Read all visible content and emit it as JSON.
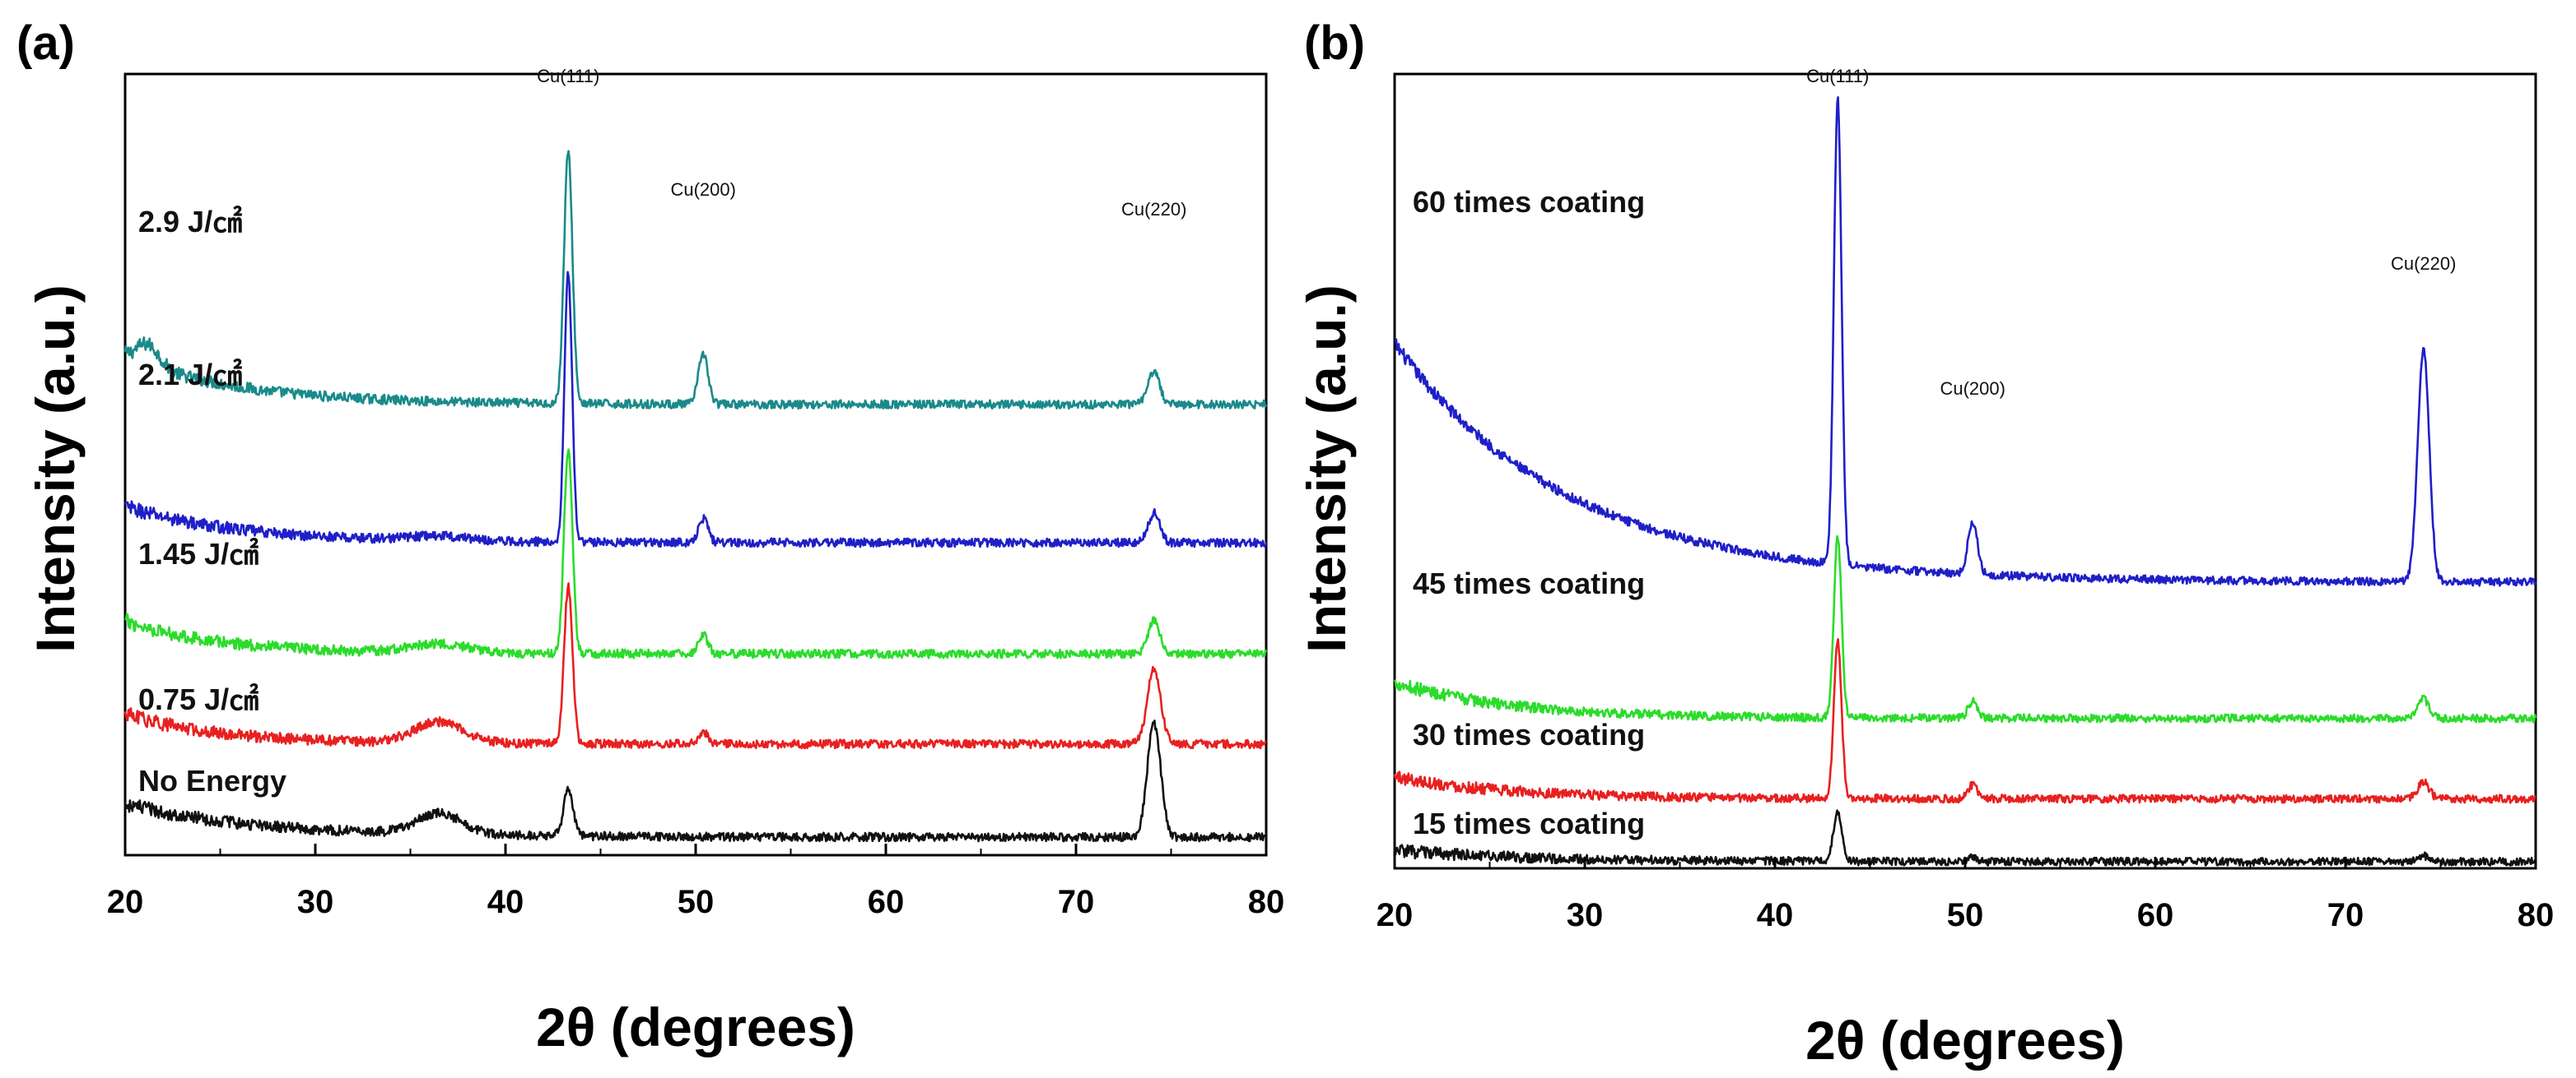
{
  "chart_data": [
    {
      "panel": "(a)",
      "type": "line",
      "xlabel": "2θ (degrees)",
      "ylabel": "Intensity (a.u.)",
      "xlim": [
        20,
        80
      ],
      "xticks": [
        "20",
        "30",
        "40",
        "50",
        "60",
        "70",
        "80"
      ],
      "yticks_shown": false,
      "peak_labels": [
        {
          "text": "Cu(111)",
          "x": 43.3
        },
        {
          "text": "Cu(200)",
          "x": 50.4
        },
        {
          "text": "Cu(220)",
          "x": 74.1
        }
      ],
      "series": [
        {
          "name": "2.9 J/㎠",
          "color": "#1a8a8a",
          "baseline": 7.5,
          "tail": 0.8,
          "decay": 6,
          "humps": [
            [
              21.2,
              0.35,
              0.6
            ]
          ],
          "peaks": [
            [
              43.3,
              4.2,
              0.22
            ],
            [
              50.4,
              0.85,
              0.25
            ],
            [
              74.1,
              0.55,
              0.3
            ]
          ]
        },
        {
          "name": "2.1 J/㎠",
          "color": "#1f1fc8",
          "baseline": 5.2,
          "tail": 0.6,
          "decay": 6,
          "humps": [
            [
              36.5,
              0.08,
              1.5
            ]
          ],
          "peaks": [
            [
              43.3,
              4.5,
              0.2
            ],
            [
              50.4,
              0.4,
              0.25
            ],
            [
              74.1,
              0.5,
              0.3
            ]
          ]
        },
        {
          "name": "1.45 J/㎠",
          "color": "#2bdc2b",
          "baseline": 3.35,
          "tail": 0.55,
          "decay": 5,
          "humps": [
            [
              36.5,
              0.15,
              1.5
            ]
          ],
          "peaks": [
            [
              43.3,
              3.4,
              0.22
            ],
            [
              50.4,
              0.3,
              0.25
            ],
            [
              74.1,
              0.55,
              0.3
            ]
          ]
        },
        {
          "name": "0.75 J/㎠",
          "color": "#e82020",
          "baseline": 1.85,
          "tail": 0.5,
          "decay": 5,
          "humps": [
            [
              36.5,
              0.35,
              1.3
            ]
          ],
          "peaks": [
            [
              43.3,
              2.6,
              0.22
            ],
            [
              50.4,
              0.2,
              0.25
            ],
            [
              74.1,
              1.25,
              0.35
            ]
          ]
        },
        {
          "name": "No Energy",
          "color": "#111111",
          "baseline": 0.3,
          "tail": 0.55,
          "decay": 7,
          "humps": [
            [
              36.5,
              0.35,
              1.2
            ]
          ],
          "peaks": [
            [
              43.3,
              0.75,
              0.25
            ],
            [
              74.1,
              1.9,
              0.35
            ]
          ]
        }
      ]
    },
    {
      "panel": "(b)",
      "type": "line",
      "xlabel": "2θ (degrees)",
      "ylabel": "Intensity (a.u.)",
      "xlim": [
        20,
        80
      ],
      "xticks": [
        "20",
        "30",
        "40",
        "50",
        "60",
        "70",
        "80"
      ],
      "yticks_shown": false,
      "peak_labels": [
        {
          "text": "Cu(111)",
          "x": 43.3
        },
        {
          "text": "Cu(200)",
          "x": 50.4
        },
        {
          "text": "Cu(220)",
          "x": 74.1
        }
      ],
      "series": [
        {
          "name": "60 times coating",
          "color": "#1f1fc8",
          "baseline": 5.15,
          "tail": 4.3,
          "decay": 9,
          "humps": [],
          "peaks": [
            [
              43.3,
              8.4,
              0.2
            ],
            [
              50.4,
              0.95,
              0.25
            ],
            [
              74.1,
              4.2,
              0.3
            ]
          ]
        },
        {
          "name": "45 times coating",
          "color": "#2bdc2b",
          "baseline": 2.7,
          "tail": 0.65,
          "decay": 6,
          "humps": [],
          "peaks": [
            [
              43.3,
              3.25,
              0.2
            ],
            [
              50.4,
              0.3,
              0.25
            ],
            [
              74.1,
              0.35,
              0.3
            ]
          ]
        },
        {
          "name": "30 times coating",
          "color": "#e82020",
          "baseline": 1.25,
          "tail": 0.4,
          "decay": 6,
          "humps": [],
          "peaks": [
            [
              43.3,
              2.85,
              0.2
            ],
            [
              50.4,
              0.25,
              0.25
            ],
            [
              74.1,
              0.3,
              0.3
            ]
          ]
        },
        {
          "name": "15 times coating",
          "color": "#111111",
          "baseline": 0.12,
          "tail": 0.2,
          "decay": 7,
          "humps": [],
          "peaks": [
            [
              43.3,
              0.9,
              0.22
            ],
            [
              50.4,
              0.08,
              0.25
            ],
            [
              74.1,
              0.1,
              0.3
            ]
          ]
        }
      ]
    }
  ]
}
